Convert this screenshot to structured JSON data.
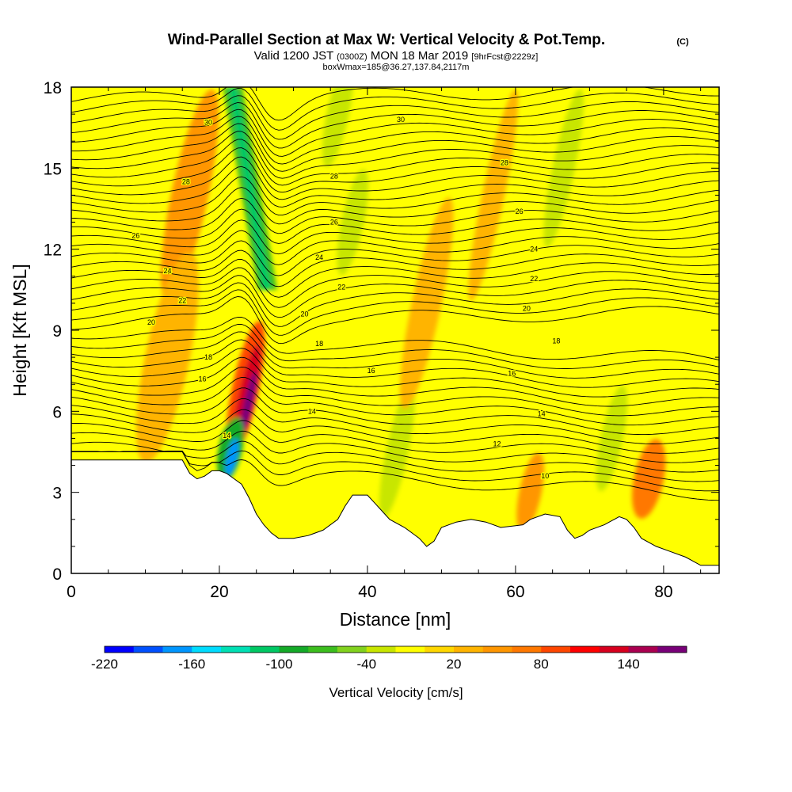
{
  "header": {
    "title": "Wind-Parallel Section at Max W: Vertical Velocity & Pot.Temp.",
    "copyright": "(C)",
    "valid_prefix": "Valid 1200 JST",
    "valid_utc": "(0300Z)",
    "valid_date": "MON 18 Mar 2019",
    "forecast": "[9hrFcst@2229z]",
    "boxwmax": "boxWmax=185@36.27,137.84,2117m"
  },
  "chart_data": {
    "type": "heatmap",
    "xlabel": "Distance [nm]",
    "ylabel": "Height [Kft MSL]",
    "xlim": [
      0,
      87.5
    ],
    "ylim": [
      0,
      18
    ],
    "x_ticks": [
      0,
      20,
      40,
      60,
      80
    ],
    "x_tick_labels": [
      "0",
      "20",
      "40",
      "60",
      "80"
    ],
    "y_ticks": [
      0,
      3,
      6,
      9,
      12,
      15,
      18
    ],
    "y_tick_labels": [
      "0",
      "3",
      "6",
      "9",
      "12",
      "15",
      "18"
    ],
    "grid": false,
    "colorbar": {
      "label": "Vertical Velocity [cm/s]",
      "min": -220,
      "max": 180,
      "step": 20,
      "tick_values": [
        -220,
        -160,
        -100,
        -40,
        20,
        80,
        140
      ],
      "tick_labels": [
        "-220",
        "-160",
        "-100",
        "-40",
        "20",
        "80",
        "140"
      ],
      "colors": [
        "#0000ff",
        "#0050ff",
        "#0096ff",
        "#00dcff",
        "#00e0b4",
        "#00c864",
        "#14aa28",
        "#3cbe1e",
        "#82d21e",
        "#c8e600",
        "#ffff00",
        "#ffd700",
        "#ffb400",
        "#ff9600",
        "#ff7800",
        "#ff4600",
        "#ff0000",
        "#d7001e",
        "#aa0050",
        "#780078"
      ]
    },
    "terrain": [
      [
        0,
        4.2
      ],
      [
        15,
        4.2
      ],
      [
        16,
        3.7
      ],
      [
        17,
        3.5
      ],
      [
        18,
        3.6
      ],
      [
        19,
        3.8
      ],
      [
        20,
        3.8
      ],
      [
        21,
        3.7
      ],
      [
        22,
        3.5
      ],
      [
        23,
        3.3
      ],
      [
        24,
        2.8
      ],
      [
        25,
        2.2
      ],
      [
        26,
        1.8
      ],
      [
        27,
        1.5
      ],
      [
        28,
        1.3
      ],
      [
        30,
        1.3
      ],
      [
        32,
        1.4
      ],
      [
        34,
        1.6
      ],
      [
        36,
        2.0
      ],
      [
        37,
        2.5
      ],
      [
        38,
        2.9
      ],
      [
        40,
        2.9
      ],
      [
        41,
        2.6
      ],
      [
        42,
        2.3
      ],
      [
        43,
        2.0
      ],
      [
        45,
        1.7
      ],
      [
        47,
        1.3
      ],
      [
        48,
        1.0
      ],
      [
        49,
        1.2
      ],
      [
        50,
        1.7
      ],
      [
        52,
        1.9
      ],
      [
        54,
        2.0
      ],
      [
        56,
        1.9
      ],
      [
        58,
        1.7
      ],
      [
        61,
        1.8
      ],
      [
        62,
        2.0
      ],
      [
        64,
        2.2
      ],
      [
        66,
        2.1
      ],
      [
        67,
        1.6
      ],
      [
        68,
        1.3
      ],
      [
        69,
        1.4
      ],
      [
        70,
        1.6
      ],
      [
        72,
        1.8
      ],
      [
        74,
        2.1
      ],
      [
        75,
        2.0
      ],
      [
        76,
        1.7
      ],
      [
        77,
        1.3
      ],
      [
        79,
        1.0
      ],
      [
        81,
        0.8
      ],
      [
        83,
        0.6
      ],
      [
        85,
        0.3
      ],
      [
        87.5,
        0.3
      ]
    ],
    "w_features": [
      {
        "type": "column",
        "x0": 26.5,
        "x1": 21.8,
        "y0": 10.5,
        "y1": 18,
        "width": 2.6,
        "w": -80
      },
      {
        "type": "column",
        "x0": 26.4,
        "x1": 21.8,
        "y0": 10.5,
        "y1": 18,
        "width": 1.2,
        "w": -110
      },
      {
        "type": "core",
        "x": 23.5,
        "y": 6.8,
        "rx": 1.8,
        "ry": 2.6,
        "w": 80
      },
      {
        "type": "core",
        "x": 23.7,
        "y": 6.5,
        "rx": 1.2,
        "ry": 2.0,
        "w": 120
      },
      {
        "type": "core",
        "x": 23.9,
        "y": 6.3,
        "rx": 0.6,
        "ry": 1.2,
        "w": 165
      },
      {
        "type": "core",
        "x": 21.5,
        "y": 4.6,
        "rx": 1.6,
        "ry": 1.2,
        "w": -100
      },
      {
        "type": "core",
        "x": 21.7,
        "y": 4.3,
        "rx": 0.7,
        "ry": 0.7,
        "w": -180
      },
      {
        "type": "core",
        "x": 16,
        "y": 14,
        "rx": 2.5,
        "ry": 4,
        "w": 40
      },
      {
        "type": "core",
        "x": 13,
        "y": 8,
        "rx": 3,
        "ry": 4,
        "w": 30
      },
      {
        "type": "core",
        "x": 36,
        "y": 17,
        "rx": 1.5,
        "ry": 2,
        "w": -30
      },
      {
        "type": "core",
        "x": 38,
        "y": 13,
        "rx": 1.5,
        "ry": 2,
        "w": -30
      },
      {
        "type": "core",
        "x": 44,
        "y": 4.5,
        "rx": 1.5,
        "ry": 2.5,
        "w": -30
      },
      {
        "type": "core",
        "x": 66.5,
        "y": 15,
        "rx": 1.5,
        "ry": 3,
        "w": -30
      },
      {
        "type": "core",
        "x": 73,
        "y": 5,
        "rx": 1.5,
        "ry": 2,
        "w": -30
      },
      {
        "type": "core",
        "x": 57,
        "y": 14,
        "rx": 1.5,
        "ry": 4,
        "w": 30
      },
      {
        "type": "core",
        "x": 78,
        "y": 3.5,
        "rx": 2,
        "ry": 1.5,
        "w": 60
      },
      {
        "type": "core",
        "x": 62,
        "y": 3,
        "rx": 1.5,
        "ry": 1.5,
        "w": 40
      },
      {
        "type": "core",
        "x": 48,
        "y": 10,
        "rx": 2,
        "ry": 4,
        "w": 30
      }
    ],
    "isentrope_labels": [
      {
        "text": "30",
        "x": 18.5,
        "y": 16.7
      },
      {
        "text": "30",
        "x": 44.5,
        "y": 16.8
      },
      {
        "text": "28",
        "x": 15.5,
        "y": 14.5
      },
      {
        "text": "28",
        "x": 35.5,
        "y": 14.7
      },
      {
        "text": "28",
        "x": 58.5,
        "y": 15.2
      },
      {
        "text": "26",
        "x": 8.7,
        "y": 12.5
      },
      {
        "text": "26",
        "x": 35.5,
        "y": 13.0
      },
      {
        "text": "26",
        "x": 60.5,
        "y": 13.4
      },
      {
        "text": "24",
        "x": 13.0,
        "y": 11.2
      },
      {
        "text": "24",
        "x": 33.5,
        "y": 11.7
      },
      {
        "text": "24",
        "x": 62.5,
        "y": 12.0
      },
      {
        "text": "22",
        "x": 15.0,
        "y": 10.1
      },
      {
        "text": "22",
        "x": 36.5,
        "y": 10.6
      },
      {
        "text": "22",
        "x": 62.5,
        "y": 10.9
      },
      {
        "text": "20",
        "x": 10.8,
        "y": 9.3
      },
      {
        "text": "20",
        "x": 31.5,
        "y": 9.6
      },
      {
        "text": "20",
        "x": 61.5,
        "y": 9.8
      },
      {
        "text": "18",
        "x": 18.5,
        "y": 8.0
      },
      {
        "text": "18",
        "x": 33.5,
        "y": 8.5
      },
      {
        "text": "18",
        "x": 65.5,
        "y": 8.6
      },
      {
        "text": "16",
        "x": 17.7,
        "y": 7.2
      },
      {
        "text": "16",
        "x": 40.5,
        "y": 7.5
      },
      {
        "text": "16",
        "x": 59.5,
        "y": 7.4
      },
      {
        "text": "14",
        "x": 21.0,
        "y": 5.1
      },
      {
        "text": "14",
        "x": 32.5,
        "y": 6.0
      },
      {
        "text": "14",
        "x": 63.5,
        "y": 5.9
      },
      {
        "text": "12",
        "x": 57.5,
        "y": 4.8
      },
      {
        "text": "10",
        "x": 64.0,
        "y": 3.6
      }
    ]
  }
}
